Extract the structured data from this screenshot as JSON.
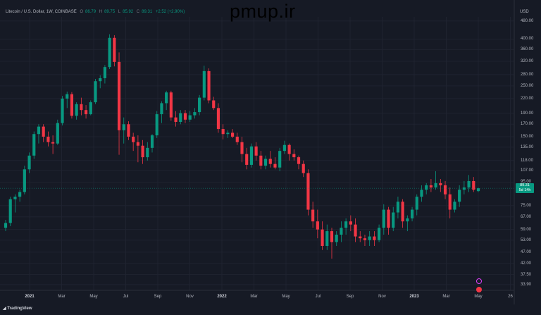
{
  "header": {
    "symbol": "Litecoin / U.S. Dollar, 1W, COINBASE",
    "open_label": "O",
    "open": "86.79",
    "high_label": "H",
    "high": "89.75",
    "low_label": "L",
    "low": "85.92",
    "close_label": "C",
    "close": "89.31",
    "change": "+2.52 (+2.90%)"
  },
  "watermark": "pmup.ir",
  "currency": "USD",
  "price_label": {
    "price": "89.31",
    "countdown": "5d 14h"
  },
  "footer": {
    "brand": "TradingView"
  },
  "colors": {
    "up": "#089981",
    "down": "#f23645",
    "background": "#161a25"
  },
  "chart_data": {
    "type": "candlestick",
    "y_scale": "log",
    "ylim": [
      32,
      500
    ],
    "y_ticks": [
      "480.00",
      "400.00",
      "360.00",
      "320.00",
      "280.00",
      "250.00",
      "220.00",
      "190.00",
      "170.00",
      "150.00",
      "135.00",
      "118.00",
      "107.00",
      "95.00",
      "75.00",
      "67.00",
      "59.00",
      "53.00",
      "47.00",
      "42.00",
      "37.50",
      "33.90"
    ],
    "x_ticks": [
      {
        "label": "2021",
        "major": true
      },
      {
        "label": "Mar",
        "major": false
      },
      {
        "label": "May",
        "major": false
      },
      {
        "label": "Jul",
        "major": false
      },
      {
        "label": "Sep",
        "major": false
      },
      {
        "label": "Nov",
        "major": false
      },
      {
        "label": "2022",
        "major": true
      },
      {
        "label": "Mar",
        "major": false
      },
      {
        "label": "May",
        "major": false
      },
      {
        "label": "Jul",
        "major": false
      },
      {
        "label": "Sep",
        "major": false
      },
      {
        "label": "Nov",
        "major": false
      },
      {
        "label": "2023",
        "major": true
      },
      {
        "label": "Mar",
        "major": false
      },
      {
        "label": "May",
        "major": false
      },
      {
        "label": "26",
        "major": false
      }
    ],
    "candles": [
      [
        60,
        65,
        58,
        63
      ],
      [
        63,
        82,
        61,
        80
      ],
      [
        80,
        84,
        70,
        82
      ],
      [
        82,
        88,
        78,
        86
      ],
      [
        86,
        112,
        84,
        108
      ],
      [
        108,
        128,
        104,
        124
      ],
      [
        124,
        158,
        120,
        154
      ],
      [
        154,
        170,
        140,
        166
      ],
      [
        166,
        170,
        142,
        150
      ],
      [
        150,
        158,
        136,
        142
      ],
      [
        142,
        152,
        126,
        140
      ],
      [
        140,
        178,
        138,
        172
      ],
      [
        172,
        226,
        168,
        220
      ],
      [
        220,
        236,
        200,
        230
      ],
      [
        230,
        235,
        180,
        185
      ],
      [
        185,
        212,
        178,
        208
      ],
      [
        208,
        222,
        186,
        196
      ],
      [
        196,
        206,
        180,
        188
      ],
      [
        188,
        216,
        186,
        212
      ],
      [
        212,
        268,
        208,
        262
      ],
      [
        262,
        278,
        244,
        270
      ],
      [
        270,
        308,
        256,
        302
      ],
      [
        302,
        420,
        296,
        405
      ],
      [
        405,
        416,
        304,
        318
      ],
      [
        318,
        350,
        125,
        160
      ],
      [
        160,
        182,
        140,
        170
      ],
      [
        170,
        175,
        145,
        150
      ],
      [
        150,
        156,
        130,
        142
      ],
      [
        142,
        152,
        116,
        137
      ],
      [
        137,
        145,
        114,
        122
      ],
      [
        122,
        142,
        118,
        134
      ],
      [
        134,
        154,
        128,
        152
      ],
      [
        152,
        194,
        148,
        188
      ],
      [
        188,
        214,
        172,
        210
      ],
      [
        210,
        238,
        196,
        234
      ],
      [
        234,
        238,
        176,
        182
      ],
      [
        182,
        194,
        166,
        174
      ],
      [
        174,
        196,
        170,
        190
      ],
      [
        190,
        196,
        172,
        178
      ],
      [
        178,
        194,
        174,
        186
      ],
      [
        186,
        200,
        180,
        192
      ],
      [
        192,
        228,
        186,
        222
      ],
      [
        222,
        306,
        216,
        290
      ],
      [
        290,
        298,
        210,
        216
      ],
      [
        216,
        224,
        196,
        200
      ],
      [
        200,
        210,
        156,
        162
      ],
      [
        162,
        170,
        146,
        154
      ],
      [
        154,
        160,
        148,
        156
      ],
      [
        156,
        162,
        148,
        150
      ],
      [
        150,
        156,
        138,
        142
      ],
      [
        142,
        150,
        116,
        126
      ],
      [
        126,
        134,
        108,
        113
      ],
      [
        113,
        140,
        110,
        136
      ],
      [
        136,
        142,
        118,
        124
      ],
      [
        124,
        130,
        108,
        112
      ],
      [
        112,
        124,
        108,
        120
      ],
      [
        120,
        130,
        110,
        114
      ],
      [
        114,
        122,
        108,
        110
      ],
      [
        110,
        134,
        106,
        130
      ],
      [
        130,
        144,
        126,
        138
      ],
      [
        138,
        140,
        118,
        126
      ],
      [
        126,
        132,
        118,
        122
      ],
      [
        122,
        124,
        108,
        114
      ],
      [
        114,
        118,
        100,
        104
      ],
      [
        104,
        108,
        68,
        72
      ],
      [
        72,
        78,
        60,
        64
      ],
      [
        64,
        72,
        54,
        59
      ],
      [
        59,
        64,
        48,
        50
      ],
      [
        50,
        62,
        48,
        58
      ],
      [
        58,
        60,
        44,
        52
      ],
      [
        52,
        58,
        50,
        56
      ],
      [
        56,
        64,
        52,
        60
      ],
      [
        60,
        66,
        56,
        64
      ],
      [
        64,
        68,
        58,
        62
      ],
      [
        62,
        66,
        52,
        55
      ],
      [
        55,
        58,
        52,
        54
      ],
      [
        54,
        56,
        50,
        53
      ],
      [
        53,
        58,
        50,
        55
      ],
      [
        55,
        58,
        50,
        53
      ],
      [
        53,
        62,
        52,
        60
      ],
      [
        60,
        76,
        56,
        72
      ],
      [
        72,
        74,
        56,
        60
      ],
      [
        60,
        74,
        58,
        70
      ],
      [
        70,
        82,
        66,
        78
      ],
      [
        78,
        80,
        60,
        64
      ],
      [
        64,
        68,
        58,
        66
      ],
      [
        66,
        74,
        64,
        72
      ],
      [
        72,
        84,
        68,
        82
      ],
      [
        82,
        92,
        78,
        88
      ],
      [
        88,
        94,
        84,
        92
      ],
      [
        92,
        98,
        86,
        90
      ],
      [
        90,
        106,
        88,
        94
      ],
      [
        94,
        98,
        86,
        92
      ],
      [
        92,
        96,
        80,
        84
      ],
      [
        84,
        90,
        66,
        72
      ],
      [
        72,
        80,
        70,
        78
      ],
      [
        78,
        92,
        74,
        88
      ],
      [
        88,
        96,
        84,
        90
      ],
      [
        90,
        102,
        86,
        96
      ],
      [
        96,
        100,
        86,
        88
      ],
      [
        86.79,
        89.75,
        85.92,
        89.31
      ]
    ]
  }
}
